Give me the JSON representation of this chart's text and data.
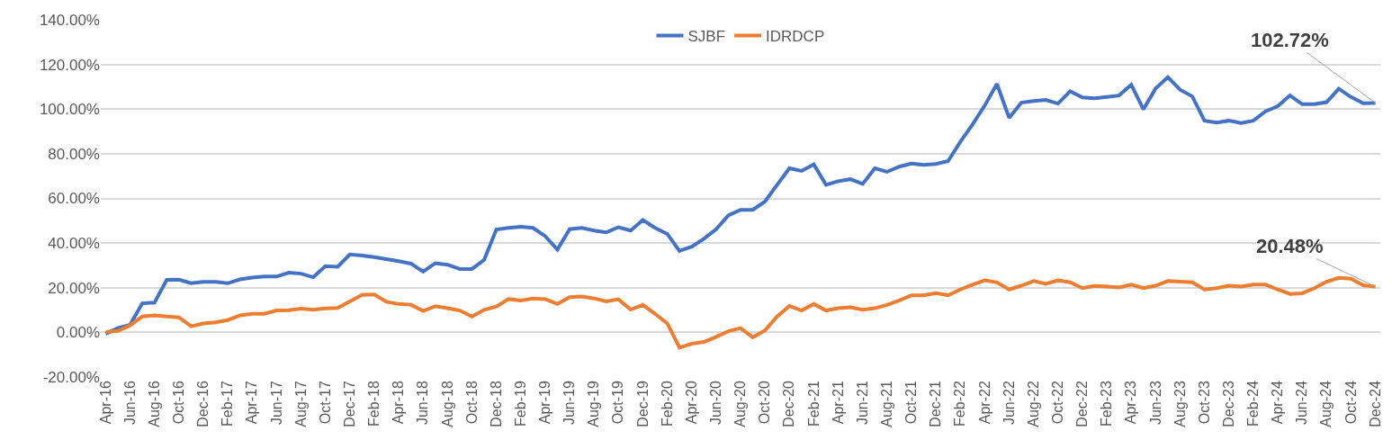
{
  "chart_data": {
    "type": "line",
    "categories": [
      "Apr-16",
      null,
      "Jun-16",
      null,
      "Aug-16",
      null,
      "Oct-16",
      null,
      "Dec-16",
      null,
      "Feb-17",
      null,
      "Apr-17",
      null,
      "Jun-17",
      null,
      "Aug-17",
      null,
      "Oct-17",
      null,
      "Dec-17",
      null,
      "Feb-18",
      null,
      "Apr-18",
      null,
      "Jun-18",
      null,
      "Aug-18",
      null,
      "Oct-18",
      null,
      "Dec-18",
      null,
      "Feb-19",
      null,
      "Apr-19",
      null,
      "Jun-19",
      null,
      "Aug-19",
      null,
      "Oct-19",
      null,
      "Dec-19",
      null,
      "Feb-20",
      null,
      "Apr-20",
      null,
      "Jun-20",
      null,
      "Aug-20",
      null,
      "Oct-20",
      null,
      "Dec-20",
      null,
      "Feb-21",
      null,
      "Apr-21",
      null,
      "Jun-21",
      null,
      "Aug-21",
      null,
      "Oct-21",
      null,
      "Dec-21",
      null,
      "Feb-22",
      null,
      "Apr-22",
      null,
      "Jun-22",
      null,
      "Aug-22",
      null,
      "Oct-22",
      null,
      "Dec-22",
      null,
      "Feb-23",
      null,
      "Apr-23",
      null,
      "Jun-23",
      null,
      "Aug-23",
      null,
      "Oct-23",
      null,
      "Dec-23",
      null,
      "Feb-24",
      null,
      "Apr-24",
      null,
      "Jun-24",
      null,
      "Aug-24",
      null,
      "Oct-24",
      null,
      "Dec-24"
    ],
    "series": [
      {
        "name": "SJBF",
        "color": "#4472c4",
        "values": [
          -0.6,
          1.9,
          3.4,
          13,
          13.3,
          23.5,
          23.6,
          22,
          22.6,
          22.6,
          22,
          23.7,
          24.5,
          25,
          25,
          26.7,
          26.3,
          24.7,
          29.7,
          29.4,
          34.9,
          34.4,
          33.7,
          32.8,
          31.9,
          30.8,
          27.2,
          31,
          30.3,
          28.4,
          28.4,
          32.5,
          46.1,
          46.8,
          47.3,
          46.8,
          43.1,
          37.1,
          46.2,
          46.8,
          45.6,
          44.8,
          47.1,
          45.6,
          50.3,
          46.8,
          44.1,
          36.5,
          38.4,
          41.9,
          46.2,
          52.4,
          54.9,
          54.9,
          58.6,
          66.1,
          73.5,
          72.3,
          75.2,
          66.1,
          67.7,
          68.6,
          66.5,
          73.5,
          71.9,
          74.2,
          75.6,
          75,
          75.4,
          76.7,
          85.3,
          93.1,
          101.6,
          111.3,
          96.1,
          102.9,
          103.6,
          104.1,
          102.5,
          108,
          105.2,
          104.8,
          105.4,
          106.1,
          110.9,
          99.9,
          109.3,
          114.3,
          108.7,
          105.7,
          94.8,
          94,
          94.8,
          93.8,
          94.8,
          99,
          101.3,
          106.1,
          102.2,
          102.2,
          103.1,
          109.1,
          105.4,
          102.6,
          102.72
        ]
      },
      {
        "name": "IDRDCP",
        "color": "#ed7d31",
        "values": [
          0.2,
          0.6,
          3.1,
          7.1,
          7.6,
          7.1,
          6.7,
          2.7,
          4,
          4.5,
          5.5,
          7.6,
          8.3,
          8.3,
          9.8,
          9.9,
          10.6,
          10.1,
          10.7,
          10.9,
          13.9,
          16.8,
          17,
          13.7,
          12.7,
          12.4,
          9.6,
          11.7,
          10.8,
          9.8,
          7.1,
          10.1,
          11.6,
          14.9,
          14.3,
          15.2,
          14.9,
          12.7,
          15.8,
          16.1,
          15.2,
          13.9,
          14.8,
          10.2,
          12.3,
          8.3,
          4,
          -6.8,
          -5.1,
          -4.3,
          -2,
          0.5,
          1.9,
          -2.2,
          0.9,
          7.1,
          11.8,
          9.8,
          12.7,
          9.8,
          10.8,
          11.2,
          10.1,
          10.8,
          12.3,
          14.3,
          16.6,
          16.6,
          17.6,
          16.6,
          19.2,
          21.4,
          23.3,
          22.4,
          19.2,
          20.9,
          23,
          21.7,
          23.3,
          22.4,
          19.8,
          20.8,
          20.5,
          20.1,
          21.4,
          19.8,
          20.9,
          23,
          22.7,
          22.4,
          19.2,
          19.8,
          20.9,
          20.5,
          21.4,
          21.4,
          19.2,
          17.2,
          17.5,
          19.8,
          22.7,
          24.4,
          24,
          21.1,
          20.48
        ]
      }
    ],
    "ylim": [
      -20,
      140
    ],
    "yticks": [
      {
        "value": -20,
        "label": "-20.00%"
      },
      {
        "value": 0,
        "label": "0.00%"
      },
      {
        "value": 20,
        "label": "20.00%"
      },
      {
        "value": 40,
        "label": "40.00%"
      },
      {
        "value": 60,
        "label": "60.00%"
      },
      {
        "value": 80,
        "label": "80.00%"
      },
      {
        "value": 100,
        "label": "100.00%"
      },
      {
        "value": 120,
        "label": "120.00%"
      },
      {
        "value": 140,
        "label": "140.00%"
      }
    ],
    "annotations": [
      {
        "text": "102.72%",
        "x": "Dec-24",
        "y": 102.72
      },
      {
        "text": "20.48%",
        "x": "Dec-24",
        "y": 20.48
      }
    ],
    "grid": "y",
    "legend": "top",
    "marker": "none",
    "line_style": "solid"
  }
}
